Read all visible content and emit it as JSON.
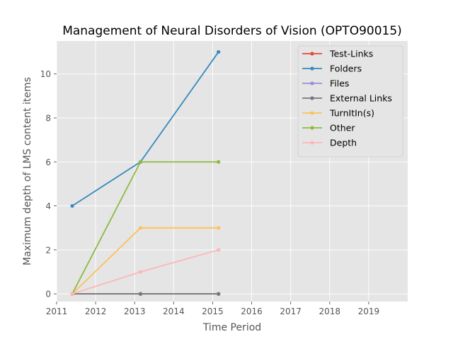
{
  "chart_data": {
    "type": "line",
    "title": "Management of Neural Disorders of Vision (OPTO90015)",
    "xlabel": "Time Period",
    "ylabel": "Maximum depth of LMS content items",
    "xlim": [
      2011.0,
      2020.0
    ],
    "ylim": [
      -0.35,
      11.5
    ],
    "xticks": [
      2011,
      2012,
      2013,
      2014,
      2015,
      2016,
      2017,
      2018,
      2019
    ],
    "yticks": [
      0,
      2,
      4,
      6,
      8,
      10
    ],
    "grid": true,
    "legend_position": "top-right",
    "x": [
      2011.4,
      2013.15,
      2015.15
    ],
    "series": [
      {
        "name": "Test-Links",
        "color": "#E24A33",
        "values": [
          0,
          0,
          0
        ]
      },
      {
        "name": "Folders",
        "color": "#348ABD",
        "values": [
          4,
          6,
          11
        ]
      },
      {
        "name": "Files",
        "color": "#988ED5",
        "values": [
          0,
          0,
          0
        ]
      },
      {
        "name": "External Links",
        "color": "#777777",
        "values": [
          0,
          0,
          0
        ]
      },
      {
        "name": "TurnItIn(s)",
        "color": "#FBC15E",
        "values": [
          0,
          3,
          3
        ]
      },
      {
        "name": "Other",
        "color": "#8EBA42",
        "values": [
          0,
          6,
          6
        ]
      },
      {
        "name": "Depth",
        "color": "#FFB5B8",
        "values": [
          0,
          1,
          2
        ]
      }
    ]
  }
}
